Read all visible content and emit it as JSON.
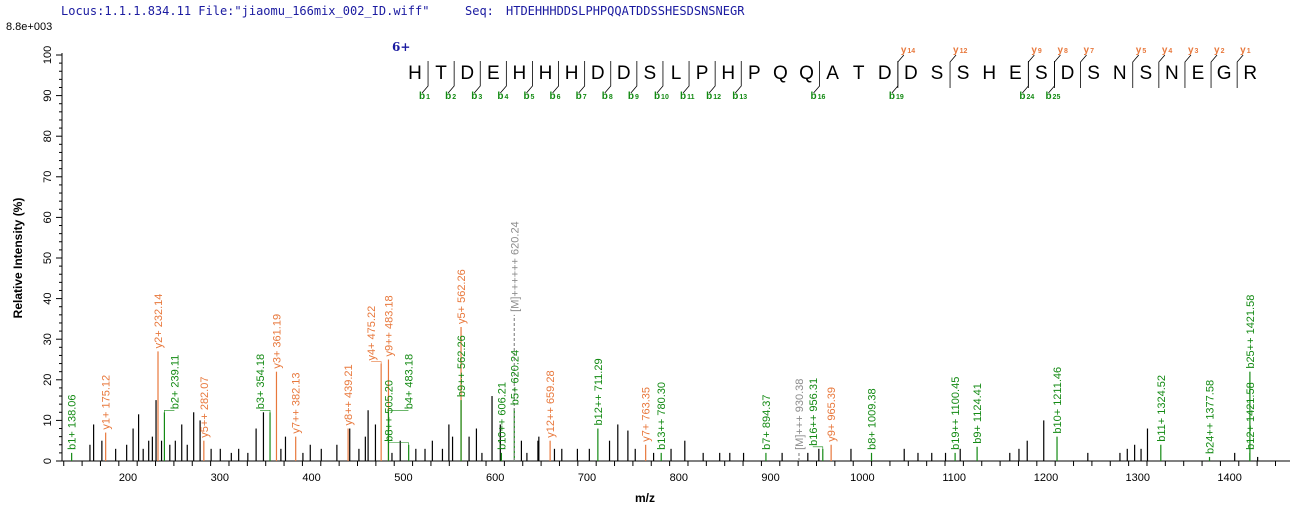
{
  "header": {
    "locus": "Locus:1.1.1.834.11 File:\"jiaomu_166mix_002_ID.wiff\"",
    "seq_label": "Seq:",
    "seq_value": "HTDEHHHDDSLPHPQQATDDSSHESDSNSNEGR"
  },
  "max_intensity": "8.8e+003",
  "charge": "6+",
  "colors": {
    "b": "#138a13",
    "y": "#e8783c",
    "M": "#8c8c8c",
    "peak": "#000000",
    "header": "#1a1aa0"
  },
  "sequence": {
    "residues": [
      "H",
      "T",
      "D",
      "E",
      "H",
      "H",
      "H",
      "D",
      "D",
      "S",
      "L",
      "P",
      "H",
      "P",
      "Q",
      "Q",
      "A",
      "T",
      "D",
      "D",
      "S",
      "S",
      "H",
      "E",
      "S",
      "D",
      "S",
      "N",
      "S",
      "N",
      "E",
      "G",
      "R"
    ],
    "b_ions": [
      1,
      2,
      3,
      4,
      5,
      6,
      7,
      8,
      9,
      10,
      11,
      12,
      13,
      16,
      19,
      24,
      25
    ],
    "y_ions": [
      14,
      12,
      9,
      8,
      7,
      5,
      4,
      3,
      2,
      1
    ]
  },
  "chart_data": {
    "type": "bar",
    "title": "",
    "xlabel": "m/z",
    "ylabel": "Relative  Intensity (%)",
    "xlim": [
      128,
      1466
    ],
    "ylim": [
      0,
      100
    ],
    "xticks": [
      200,
      300,
      400,
      500,
      600,
      700,
      800,
      900,
      1000,
      1100,
      1200,
      1300,
      1400
    ],
    "yticks": [
      0,
      10,
      20,
      30,
      40,
      50,
      60,
      70,
      80,
      90,
      100
    ],
    "labeled_peaks": [
      {
        "mz": 138.06,
        "intensity": 2,
        "ion": "b",
        "label": "b1+ 138.06"
      },
      {
        "mz": 175.12,
        "intensity": 7,
        "ion": "y",
        "label": "y1+ 175.12"
      },
      {
        "mz": 232.14,
        "intensity": 27,
        "ion": "y",
        "label": "y2+ 232.14"
      },
      {
        "mz": 239.11,
        "intensity": 12,
        "ion": "b",
        "label": "b2+ 239.11"
      },
      {
        "mz": 282.07,
        "intensity": 5,
        "ion": "y",
        "label": "y5++ 282.07"
      },
      {
        "mz": 354.18,
        "intensity": 12,
        "ion": "b",
        "label": "b3+ 354.18"
      },
      {
        "mz": 361.19,
        "intensity": 22,
        "ion": "y",
        "label": "y3+ 361.19"
      },
      {
        "mz": 382.13,
        "intensity": 6,
        "ion": "y",
        "label": "y7++ 382.13"
      },
      {
        "mz": 439.21,
        "intensity": 8,
        "ion": "y",
        "label": "y8++ 439.21"
      },
      {
        "mz": 475.22,
        "intensity": 24,
        "ion": "y",
        "label": "y4+ 475.22"
      },
      {
        "mz": 483.18,
        "intensity": 25,
        "ion": "y",
        "label": "y9++ 483.18"
      },
      {
        "mz": 483.18,
        "intensity": 12,
        "ion": "b",
        "label": "b4+ 483.18"
      },
      {
        "mz": 505.2,
        "intensity": 4,
        "ion": "b",
        "label": "b8++ 505.20"
      },
      {
        "mz": 562.26,
        "intensity": 33,
        "ion": "y",
        "label": "y5+ 562.26"
      },
      {
        "mz": 562.26,
        "intensity": 15,
        "ion": "b",
        "label": "b9++ 562.26"
      },
      {
        "mz": 606.21,
        "intensity": 2,
        "ion": "b",
        "label": "b10++ 606.21"
      },
      {
        "mz": 620.24,
        "intensity": 13,
        "ion": "b",
        "label": "b5+ 620.24"
      },
      {
        "mz": 620.24,
        "intensity": 36,
        "ion": "M",
        "label": "[M]++++++ 620.24"
      },
      {
        "mz": 659.28,
        "intensity": 5,
        "ion": "y",
        "label": "y12++ 659.28"
      },
      {
        "mz": 711.29,
        "intensity": 8,
        "ion": "b",
        "label": "b12++ 711.29"
      },
      {
        "mz": 763.35,
        "intensity": 4,
        "ion": "y",
        "label": "y7+ 763.35"
      },
      {
        "mz": 780.3,
        "intensity": 2,
        "ion": "b",
        "label": "b13++ 780.30"
      },
      {
        "mz": 894.37,
        "intensity": 2,
        "ion": "b",
        "label": "b7+ 894.37"
      },
      {
        "mz": 930.38,
        "intensity": 2,
        "ion": "M",
        "label": "[M]+++ 930.38"
      },
      {
        "mz": 956.31,
        "intensity": 3,
        "ion": "b",
        "label": "b16++ 956.31"
      },
      {
        "mz": 965.39,
        "intensity": 4,
        "ion": "y",
        "label": "y9+ 965.39"
      },
      {
        "mz": 1009.38,
        "intensity": 2,
        "ion": "b",
        "label": "b8+ 1009.38"
      },
      {
        "mz": 1100.45,
        "intensity": 2,
        "ion": "b",
        "label": "b19++ 1100.45"
      },
      {
        "mz": 1124.41,
        "intensity": 3.5,
        "ion": "b",
        "label": "b9+ 1124.41"
      },
      {
        "mz": 1211.46,
        "intensity": 6,
        "ion": "b",
        "label": "b10+ 1211.46"
      },
      {
        "mz": 1324.52,
        "intensity": 4,
        "ion": "b",
        "label": "b11+ 1324.52"
      },
      {
        "mz": 1377.58,
        "intensity": 1,
        "ion": "b",
        "label": "b24++ 1377.58"
      },
      {
        "mz": 1421.58,
        "intensity": 2,
        "ion": "b",
        "label": "b12+ 1421.58"
      },
      {
        "mz": 1421.58,
        "intensity": 22,
        "ion": "b",
        "label": "b25++ 1421.58"
      }
    ],
    "unlabeled_peaks": [
      [
        158,
        4
      ],
      [
        162,
        9
      ],
      [
        171,
        5
      ],
      [
        186,
        3
      ],
      [
        198,
        4
      ],
      [
        205,
        8
      ],
      [
        211,
        11.5
      ],
      [
        216,
        3
      ],
      [
        222,
        5
      ],
      [
        226,
        6
      ],
      [
        230,
        15
      ],
      [
        236,
        5
      ],
      [
        245,
        4
      ],
      [
        251,
        5
      ],
      [
        258,
        9
      ],
      [
        264,
        4
      ],
      [
        271,
        12
      ],
      [
        278,
        10
      ],
      [
        290,
        3
      ],
      [
        300,
        3
      ],
      [
        312,
        2
      ],
      [
        320,
        3
      ],
      [
        330,
        2
      ],
      [
        339,
        8
      ],
      [
        347,
        12
      ],
      [
        366,
        3
      ],
      [
        371,
        6
      ],
      [
        390,
        2
      ],
      [
        398,
        4
      ],
      [
        410,
        3
      ],
      [
        427,
        4
      ],
      [
        441,
        8
      ],
      [
        451,
        3
      ],
      [
        458,
        6
      ],
      [
        461,
        12.5
      ],
      [
        469,
        9
      ],
      [
        487,
        2
      ],
      [
        496,
        5
      ],
      [
        513,
        3
      ],
      [
        523,
        3
      ],
      [
        531,
        5
      ],
      [
        542,
        3
      ],
      [
        549,
        9
      ],
      [
        553,
        6
      ],
      [
        571,
        6
      ],
      [
        579,
        8
      ],
      [
        585,
        2
      ],
      [
        596,
        16
      ],
      [
        605,
        9
      ],
      [
        628,
        5
      ],
      [
        634,
        2
      ],
      [
        646,
        5
      ],
      [
        647,
        6
      ],
      [
        664,
        3
      ],
      [
        672,
        3
      ],
      [
        689,
        3
      ],
      [
        702,
        3
      ],
      [
        724,
        5
      ],
      [
        733,
        9
      ],
      [
        744,
        7.5
      ],
      [
        752,
        3
      ],
      [
        772,
        2
      ],
      [
        791,
        3
      ],
      [
        806,
        5
      ],
      [
        826,
        2
      ],
      [
        844,
        2
      ],
      [
        855,
        2
      ],
      [
        870,
        2
      ],
      [
        912,
        2
      ],
      [
        940,
        2
      ],
      [
        952,
        3
      ],
      [
        987,
        3
      ],
      [
        1045,
        3
      ],
      [
        1060,
        2
      ],
      [
        1075,
        2
      ],
      [
        1090,
        2
      ],
      [
        1106,
        3
      ],
      [
        1160,
        2
      ],
      [
        1170,
        3
      ],
      [
        1179,
        5
      ],
      [
        1197,
        10
      ],
      [
        1245,
        2
      ],
      [
        1280,
        2
      ],
      [
        1288,
        3
      ],
      [
        1296,
        4
      ],
      [
        1303,
        3
      ],
      [
        1310,
        8
      ],
      [
        1405,
        2
      ],
      [
        1430,
        1
      ]
    ]
  }
}
